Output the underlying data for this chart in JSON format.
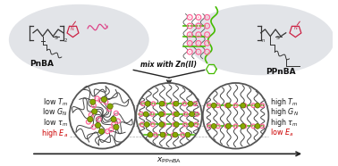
{
  "white": "#ffffff",
  "black": "#1a1a1a",
  "red": "#cc0000",
  "green": "#44bb00",
  "pink_ring": "#ff6699",
  "zn_face": "#88aa00",
  "zn_edge": "#556600",
  "chain_color": "#444444",
  "gray_blob": "#e0e0e0",
  "arrow_color": "#222222",
  "label_pnba": "PnBA",
  "label_ppnba": "PPnBA",
  "mix_text": "mix with Zn(II)",
  "xaxis_label": "x_{PPnBA}",
  "props_left": [
    "low $T_m$",
    "low $G_N$",
    "low $\\tau_m$",
    "high $E_a$"
  ],
  "props_right": [
    "high $T_m$",
    "high $G_N$",
    "high $\\tau_m$",
    "low $E_a$"
  ],
  "props_left_colors": [
    "#1a1a1a",
    "#1a1a1a",
    "#1a1a1a",
    "#cc0000"
  ],
  "props_right_colors": [
    "#1a1a1a",
    "#1a1a1a",
    "#1a1a1a",
    "#cc0000"
  ]
}
